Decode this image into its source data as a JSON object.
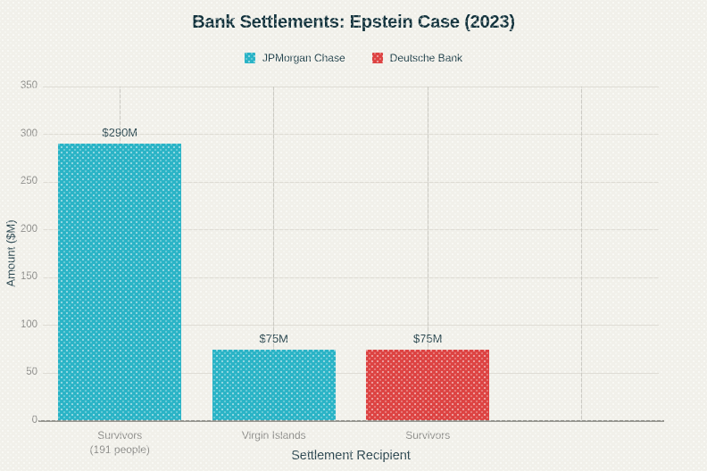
{
  "chart_data": {
    "type": "bar",
    "title": "Bank Settlements: Epstein Case (2023)",
    "xlabel": "Settlement Recipient",
    "ylabel": "Amount ($M)",
    "categories": [
      "Survivors\n(191 people)",
      "Virgin Islands",
      "Survivors"
    ],
    "values": [
      290,
      75,
      75
    ],
    "value_labels": [
      "$290M",
      "$75M",
      "$75M"
    ],
    "bar_series": [
      "JPMorgan Chase",
      "JPMorgan Chase",
      "Deutsche Bank"
    ],
    "bar_colors": [
      "#2ab3c6",
      "#2ab3c6",
      "#dd4342"
    ],
    "series": [
      {
        "name": "JPMorgan Chase",
        "color": "#2ab3c6",
        "values_by_category": [
          290,
          75,
          null
        ]
      },
      {
        "name": "Deutsche Bank",
        "color": "#dd4342",
        "values_by_category": [
          null,
          null,
          75
        ]
      }
    ],
    "legend": {
      "position": "top",
      "entries": [
        {
          "label": "JPMorgan Chase",
          "color": "#2ab3c6"
        },
        {
          "label": "Deutsche Bank",
          "color": "#dd4342"
        }
      ]
    },
    "ylim": [
      0,
      350
    ],
    "yticks": [
      0,
      50,
      100,
      150,
      200,
      250,
      300,
      350
    ],
    "x_slot_count": 4,
    "grid": true
  },
  "theme": {
    "background": "#f1f0ea",
    "title_color": "#12323c",
    "axis_title_color": "#2a454e",
    "tick_label_color": "#8e8e8b",
    "value_label_color": "#2b4850",
    "horizontal_grid_color": "#dedcd4",
    "vertical_grid_color": "#cbcac3",
    "axis_line_color": "#93938d",
    "jpmorgan_teal": "#2ab3c6",
    "deutsche_red": "#dd4342"
  }
}
